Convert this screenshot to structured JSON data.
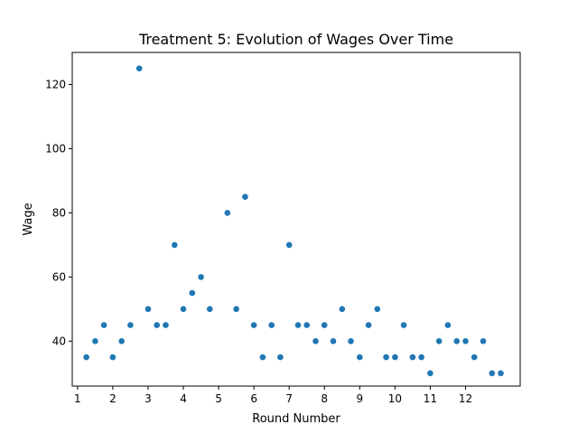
{
  "chart_data": {
    "type": "scatter",
    "title": "Treatment 5: Evolution of Wages Over Time",
    "xlabel": "Round Number",
    "ylabel": "Wage",
    "xlim": [
      0.85,
      13.55
    ],
    "ylim": [
      26,
      130
    ],
    "xticks": [
      1,
      2,
      3,
      4,
      5,
      6,
      7,
      8,
      9,
      10,
      11,
      12
    ],
    "yticks": [
      40,
      60,
      80,
      100,
      120
    ],
    "grid": false,
    "legend": "none",
    "marker_color": "#1f77b4",
    "points": [
      {
        "x": 1.25,
        "y": 35
      },
      {
        "x": 1.5,
        "y": 40
      },
      {
        "x": 1.75,
        "y": 45
      },
      {
        "x": 2.0,
        "y": 35
      },
      {
        "x": 2.25,
        "y": 40
      },
      {
        "x": 2.5,
        "y": 45
      },
      {
        "x": 2.75,
        "y": 125
      },
      {
        "x": 3.0,
        "y": 50
      },
      {
        "x": 3.25,
        "y": 45
      },
      {
        "x": 3.5,
        "y": 45
      },
      {
        "x": 3.75,
        "y": 70
      },
      {
        "x": 4.0,
        "y": 50
      },
      {
        "x": 4.25,
        "y": 55
      },
      {
        "x": 4.5,
        "y": 60
      },
      {
        "x": 4.75,
        "y": 50
      },
      {
        "x": 5.25,
        "y": 80
      },
      {
        "x": 5.5,
        "y": 50
      },
      {
        "x": 5.75,
        "y": 85
      },
      {
        "x": 6.0,
        "y": 45
      },
      {
        "x": 6.25,
        "y": 35
      },
      {
        "x": 6.5,
        "y": 45
      },
      {
        "x": 6.75,
        "y": 35
      },
      {
        "x": 7.0,
        "y": 70
      },
      {
        "x": 7.25,
        "y": 45
      },
      {
        "x": 7.5,
        "y": 45
      },
      {
        "x": 7.75,
        "y": 40
      },
      {
        "x": 8.0,
        "y": 45
      },
      {
        "x": 8.25,
        "y": 40
      },
      {
        "x": 8.5,
        "y": 50
      },
      {
        "x": 8.75,
        "y": 40
      },
      {
        "x": 9.0,
        "y": 35
      },
      {
        "x": 9.25,
        "y": 45
      },
      {
        "x": 9.5,
        "y": 50
      },
      {
        "x": 9.75,
        "y": 35
      },
      {
        "x": 10.0,
        "y": 35
      },
      {
        "x": 10.25,
        "y": 45
      },
      {
        "x": 10.5,
        "y": 35
      },
      {
        "x": 10.75,
        "y": 35
      },
      {
        "x": 11.0,
        "y": 30
      },
      {
        "x": 11.25,
        "y": 40
      },
      {
        "x": 11.5,
        "y": 45
      },
      {
        "x": 11.75,
        "y": 40
      },
      {
        "x": 12.0,
        "y": 40
      },
      {
        "x": 12.25,
        "y": 35
      },
      {
        "x": 12.5,
        "y": 40
      },
      {
        "x": 12.75,
        "y": 30
      },
      {
        "x": 13.0,
        "y": 30
      }
    ]
  }
}
